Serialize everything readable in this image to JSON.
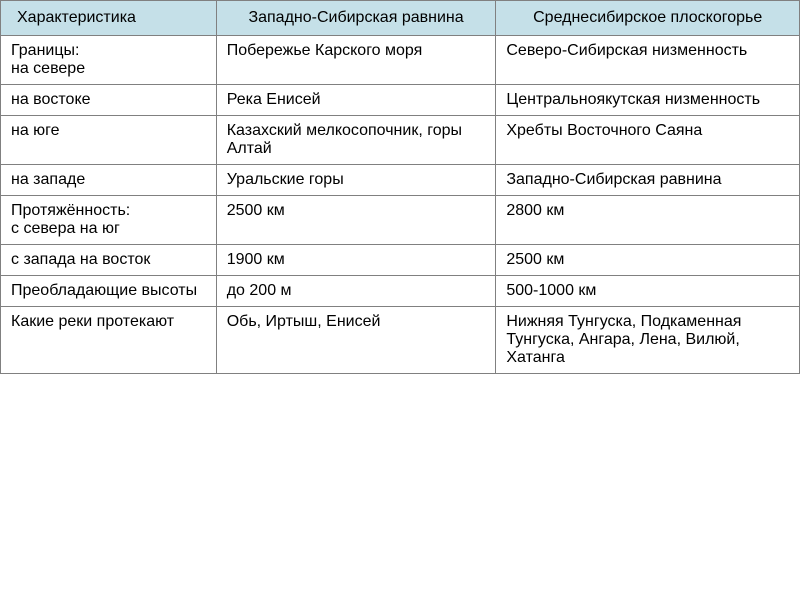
{
  "table": {
    "type": "table",
    "background_color": "#ffffff",
    "header_background": "#c5e0e8",
    "border_color": "#808080",
    "font_family": "Arial",
    "font_size": 16,
    "column_widths_pct": [
      27,
      35,
      38
    ],
    "columns": [
      "Характеристика",
      "Западно-Сибирская равнина",
      "Среднесибирское плоскогорье"
    ],
    "rows": [
      [
        "Границы:\nна севере",
        "Побережье Карского моря",
        "Северо-Сибирская низменность"
      ],
      [
        "на востоке",
        "Река Енисей",
        "Центральноякутская низменность"
      ],
      [
        "на юге",
        "Казахский мелкосопочник, горы Алтай",
        "Хребты Восточного Саяна"
      ],
      [
        "на западе",
        "Уральские горы",
        "Западно-Сибирская равнина"
      ],
      [
        "Протяжённость:\nс севера на юг",
        "2500 км",
        "2800 км"
      ],
      [
        "с запада на восток",
        "1900 км",
        "2500 км"
      ],
      [
        "Преобладающие высоты",
        "до 200 м",
        "500-1000 км"
      ],
      [
        "Какие реки протекают",
        "Обь, Иртыш, Енисей",
        "Нижняя Тунгуска, Подкаменная Тунгуска, Ангара, Лена, Вилюй, Хатанга"
      ]
    ]
  }
}
